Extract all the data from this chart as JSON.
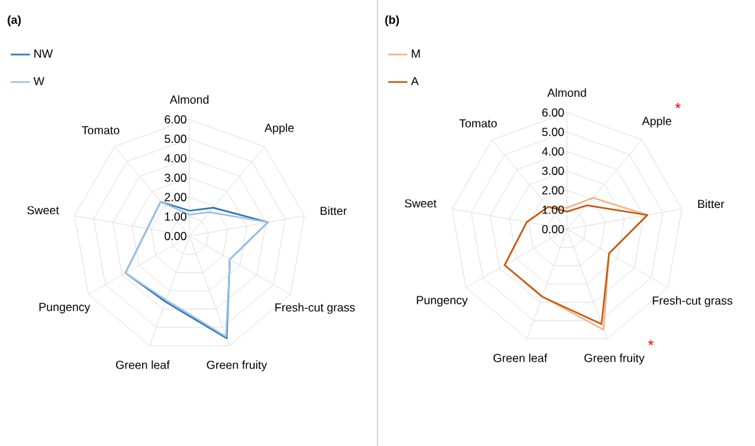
{
  "chart_data": [
    {
      "type": "radar",
      "title": "(a)",
      "categories": [
        "Almond",
        "Apple",
        "Bitter",
        "Fresh-cut grass",
        "Green fruity",
        "Green leaf",
        "Pungency",
        "Sweet",
        "Tomato"
      ],
      "series": [
        {
          "name": "NW",
          "color": "#2e75b6",
          "values": [
            1.3,
            1.9,
            4.1,
            2.4,
            5.6,
            3.6,
            3.8,
            2.2,
            2.3
          ]
        },
        {
          "name": "W",
          "color": "#9dc3e6",
          "values": [
            1.1,
            1.6,
            4.1,
            2.4,
            5.5,
            3.5,
            3.8,
            2.2,
            2.3
          ]
        }
      ],
      "ylim": [
        0,
        6
      ],
      "yticks": [
        {
          "value": 0,
          "label": "0.00"
        },
        {
          "value": 1,
          "label": "1.00"
        },
        {
          "value": 2,
          "label": "2.00"
        },
        {
          "value": 3,
          "label": "3.00"
        },
        {
          "value": 4,
          "label": "4.00"
        },
        {
          "value": 5,
          "label": "5.00"
        },
        {
          "value": 6,
          "label": "6.00"
        }
      ],
      "grid": true,
      "legend": "top left",
      "marker": "none",
      "line_style": "solid"
    },
    {
      "type": "radar",
      "title": "(b)",
      "categories": [
        "Almond",
        "Apple",
        "Bitter",
        "Fresh-cut grass",
        "Green fruity",
        "Green leaf",
        "Pungency",
        "Sweet",
        "Tomato"
      ],
      "series": [
        {
          "name": "M",
          "color": "#f4b183",
          "values": [
            1.1,
            2.1,
            4.2,
            2.5,
            5.5,
            3.7,
            3.7,
            2.1,
            1.5
          ]
        },
        {
          "name": "A",
          "color": "#c55a11",
          "values": [
            0.9,
            1.6,
            4.2,
            2.5,
            5.2,
            3.7,
            3.7,
            2.1,
            1.5
          ]
        }
      ],
      "ylim": [
        0,
        6
      ],
      "yticks": [
        {
          "value": 0,
          "label": "0.00"
        },
        {
          "value": 1,
          "label": "1.00"
        },
        {
          "value": 2,
          "label": "2.00"
        },
        {
          "value": 3,
          "label": "3.00"
        },
        {
          "value": 4,
          "label": "4.00"
        },
        {
          "value": 5,
          "label": "5.00"
        },
        {
          "value": 6,
          "label": "6.00"
        }
      ],
      "grid": true,
      "legend": "top left",
      "marker": "none",
      "line_style": "solid",
      "annotations": [
        {
          "text": "*",
          "x": "Apple"
        },
        {
          "text": "*",
          "x": "Green fruity"
        }
      ]
    }
  ]
}
